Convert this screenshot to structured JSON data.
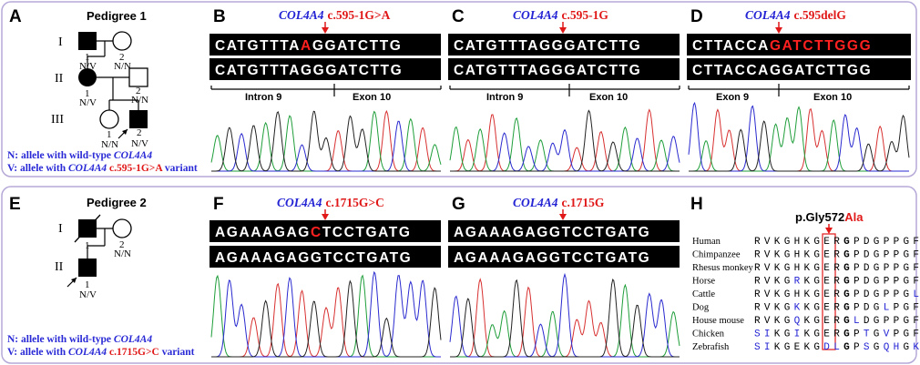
{
  "panels": {
    "A": {
      "label": "A",
      "title": "Pedigree 1"
    },
    "B": {
      "label": "B",
      "gene": "COL4A4",
      "variant": "c.595-1G>A",
      "seq_top_pre": "CATGTTTA",
      "seq_top_var": "A",
      "seq_top_post": "GGATCTTG",
      "seq_bottom": "CATGTTTAGGGATCTTG",
      "region_left": "Intron 9",
      "region_right": "Exon 10"
    },
    "C": {
      "label": "C",
      "gene": "COL4A4",
      "variant": "c.595-1G",
      "seq_top": "CATGTTTAGGGATCTTG",
      "seq_bottom": "CATGTTTAGGGATCTTG",
      "region_left": "Intron 9",
      "region_right": "Exon 10"
    },
    "D": {
      "label": "D",
      "gene": "COL4A4",
      "variant": "c.595delG",
      "seq_top_pre": "CTTACCA",
      "seq_top_var": "GATCTTGGG",
      "seq_bottom": "CTTACCAGGATCTTGG",
      "region_left": "Exon 9",
      "region_right": "Exon 10"
    },
    "E": {
      "label": "E",
      "title": "Pedigree 2"
    },
    "F": {
      "label": "F",
      "gene": "COL4A4",
      "variant": "c.1715G>C",
      "seq_top_pre": "AGAAAGAG",
      "seq_top_var": "C",
      "seq_top_post": "TCCTGATG",
      "seq_bottom": "AGAAAGAGGTCCTGATG"
    },
    "G": {
      "label": "G",
      "gene": "COL4A4",
      "variant": "c.1715G",
      "seq_top": "AGAAAGAGGTCCTGATG",
      "seq_bottom": "AGAAAGAGGTCCTGATG"
    },
    "H": {
      "label": "H",
      "mutation_prefix": "p.Gly572",
      "mutation_suffix": "Ala"
    }
  },
  "pedigree1": {
    "gen_I": "I",
    "gen_II": "II",
    "gen_III": "III",
    "I1": {
      "num": "1",
      "geno": "N/V"
    },
    "I2": {
      "num": "2",
      "geno": "N/N"
    },
    "II1": {
      "num": "1",
      "geno": "N/V"
    },
    "II2": {
      "num": "2",
      "geno": "N/N"
    },
    "III1": {
      "num": "1",
      "geno": "N/N"
    },
    "III2": {
      "num": "2",
      "geno": "N/V"
    },
    "legend_N_text": "N: allele with wild-type ",
    "legend_N_gene": "COL4A4",
    "legend_V_text": "V: allele with ",
    "legend_V_gene": "COL4A4",
    "legend_V_variant": " c.595-1G>A",
    "legend_V_end": " variant"
  },
  "pedigree2": {
    "gen_I": "I",
    "gen_II": "II",
    "I1": {
      "num": "1"
    },
    "I2": {
      "num": "2",
      "geno": "N/N"
    },
    "II1": {
      "num": "1",
      "geno": "N/V"
    },
    "legend_N_text": "N: allele with wild-type ",
    "legend_N_gene": "COL4A4",
    "legend_V_text": "V: allele with ",
    "legend_V_gene": "COL4A4",
    "legend_V_variant": " c.1715G>C",
    "legend_V_end": " variant"
  },
  "alignment": {
    "species": [
      "Human",
      "Chimpanzee",
      "Rhesus monkey",
      "Horse",
      "Cattle",
      "Dog",
      "House mouse",
      "Chicken",
      "Zebrafish"
    ],
    "sequences": [
      "RVKGHKGERGPDGPPGFPG",
      "RVKGHKGERGPDGPPGFPG",
      "RVKGHKGERGPDGPPGFPG",
      "RVKGRKGERGPDGPPGFPG",
      "RVKGHKGERGPDGPPGLPG",
      "RVKGKKGERGPDGLPGFPG",
      "RVKGQKGERGLDGPPGFPG",
      "SIKGIKGERGPTGVPGFPG",
      "SIKGEKGDLGPSGQHGKQG"
    ],
    "blue_positions": [
      [],
      [],
      [],
      [
        4
      ],
      [
        16
      ],
      [
        4,
        13
      ],
      [
        4,
        10
      ],
      [
        0,
        1,
        4,
        11,
        13
      ],
      [
        0,
        1,
        7,
        8,
        11,
        13,
        14,
        16,
        17
      ]
    ],
    "highlight_index": 9
  },
  "colors": {
    "red": "#e01818",
    "blue": "#2424d4",
    "border": "#b6a9d8",
    "trace_red": "#d83030",
    "trace_green": "#1f9e3a",
    "trace_blue": "#2a2ad0",
    "trace_black": "#222222"
  }
}
